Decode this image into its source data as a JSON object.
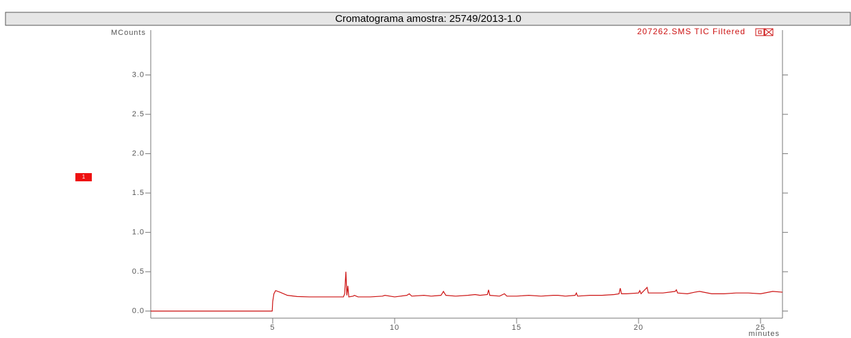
{
  "chart_data": {
    "type": "line",
    "title": "Cromatograma amostra: 25749/2013-1.0",
    "y_label": "MCounts",
    "x_label": "minutes",
    "annotation": "1",
    "xlim": [
      0,
      25.9
    ],
    "ylim": [
      -0.09,
      3.57
    ],
    "xticks": [
      5,
      10,
      15,
      20,
      25
    ],
    "yticks": [
      {
        "value": 0,
        "label": "0.0"
      },
      0.5,
      {
        "value": 1,
        "label": "1.0"
      },
      1.5,
      {
        "value": 2,
        "label": "2.0"
      },
      2.5,
      {
        "value": 3,
        "label": "3.0"
      }
    ],
    "x": [
      0,
      4.98,
      5.0,
      5.05,
      5.12,
      5.3,
      5.6,
      6.0,
      6.5,
      7.0,
      7.5,
      7.9,
      7.95,
      8.0,
      8.04,
      8.08,
      8.12,
      8.3,
      8.35,
      8.5,
      9.0,
      9.5,
      9.6,
      10.0,
      10.5,
      10.6,
      10.7,
      11.2,
      11.5,
      11.9,
      12.0,
      12.1,
      12.5,
      13.0,
      13.3,
      13.5,
      13.8,
      13.85,
      13.9,
      14.3,
      14.5,
      14.6,
      15.0,
      15.5,
      16.0,
      16.5,
      16.7,
      17.0,
      17.4,
      17.45,
      17.5,
      18.0,
      18.5,
      19.0,
      19.2,
      19.25,
      19.3,
      19.5,
      20.0,
      20.05,
      20.1,
      20.35,
      20.4,
      20.8,
      21.0,
      21.5,
      21.55,
      21.6,
      22.0,
      22.3,
      22.5,
      23.0,
      23.5,
      24.0,
      24.5,
      25.0,
      25.5,
      25.9
    ],
    "series": [
      {
        "name": "207262.SMS TIC Filtered",
        "color": "#cc1111",
        "values": [
          0,
          0,
          0.12,
          0.22,
          0.26,
          0.24,
          0.2,
          0.185,
          0.18,
          0.18,
          0.18,
          0.18,
          0.22,
          0.5,
          0.2,
          0.32,
          0.18,
          0.19,
          0.2,
          0.18,
          0.18,
          0.19,
          0.2,
          0.18,
          0.2,
          0.22,
          0.19,
          0.2,
          0.19,
          0.2,
          0.25,
          0.2,
          0.19,
          0.2,
          0.21,
          0.2,
          0.21,
          0.27,
          0.2,
          0.19,
          0.22,
          0.19,
          0.19,
          0.2,
          0.19,
          0.2,
          0.2,
          0.19,
          0.2,
          0.23,
          0.19,
          0.2,
          0.2,
          0.21,
          0.22,
          0.29,
          0.22,
          0.22,
          0.23,
          0.26,
          0.22,
          0.3,
          0.23,
          0.23,
          0.23,
          0.25,
          0.27,
          0.23,
          0.22,
          0.24,
          0.25,
          0.22,
          0.22,
          0.23,
          0.23,
          0.22,
          0.25,
          0.24
        ]
      }
    ]
  }
}
